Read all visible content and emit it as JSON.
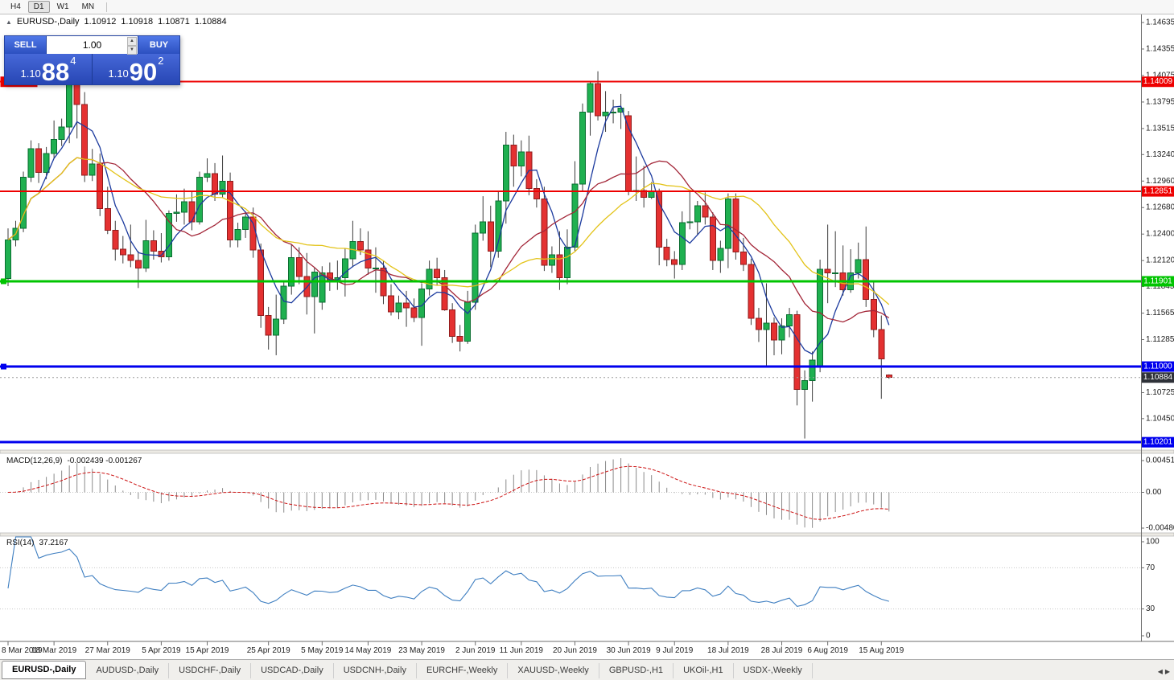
{
  "toolbar": {
    "periods": [
      {
        "label": "H4",
        "active": false
      },
      {
        "label": "D1",
        "active": true
      },
      {
        "label": "W1",
        "active": false
      },
      {
        "label": "MN",
        "active": false
      }
    ]
  },
  "icons": {
    "collapse": "▲",
    "spin_up": "▲",
    "spin_down": "▼",
    "tab_left": "◀",
    "tab_right": "▶"
  },
  "chart_header": {
    "symbol_period": "EURUSD-,Daily",
    "open": "1.10912",
    "high": "1.10918",
    "low": "1.10871",
    "close": "1.10884"
  },
  "one_click": {
    "sell_label": "SELL",
    "buy_label": "BUY",
    "volume": "1.00",
    "sell_price": {
      "prefix": "1.10",
      "big": "88",
      "sup": "4"
    },
    "buy_price": {
      "prefix": "1.10",
      "big": "90",
      "sup": "2"
    }
  },
  "colors": {
    "candle_up_fill": "#1fb050",
    "candle_up_stroke": "#0a6e30",
    "candle_down_fill": "#e43131",
    "candle_down_stroke": "#901c1c",
    "wick": "#3c3c3c",
    "ma_fast": "#1b3a9e",
    "ma_mid": "#a32638",
    "ma_slow": "#e3c318",
    "macd_histogram": "#8a8a8a",
    "macd_signal": "#cc1111",
    "rsi_line": "#3f7fc1",
    "level_red": "#ee0000",
    "level_green": "#00c400",
    "level_blue": "#0000ee",
    "current_price_line": "#a0a0a0",
    "current_badge": "#2e3138",
    "axis_line": "#6e6e6e",
    "grid_dotted": "#c8c8c8"
  },
  "hlines": [
    {
      "price": 1.14009,
      "color": "#ee0000",
      "width": 2,
      "handle": false
    },
    {
      "price": 1.12851,
      "color": "#ee0000",
      "width": 2,
      "handle": false
    },
    {
      "price": 1.11901,
      "color": "#00c400",
      "width": 3,
      "handle": true
    },
    {
      "price": 1.11,
      "color": "#0000ee",
      "width": 3,
      "handle": true
    },
    {
      "price": 1.10201,
      "color": "#0000ee",
      "width": 3,
      "handle": false
    }
  ],
  "current_price_line": {
    "price": 1.10884
  },
  "price_axis": {
    "labels": [
      1.14635,
      1.14355,
      1.14075,
      1.13795,
      1.13515,
      1.1324,
      1.1296,
      1.1268,
      1.124,
      1.1212,
      1.11845,
      1.11565,
      1.11285,
      1.10725,
      1.1045
    ],
    "badges": [
      {
        "text": "1.14009",
        "price": 1.14009,
        "color": "#ee0000"
      },
      {
        "text": "1.12851",
        "price": 1.12851,
        "color": "#ee0000"
      },
      {
        "text": "1.11901",
        "price": 1.11901,
        "color": "#00c400"
      },
      {
        "text": "1.11000",
        "price": 1.11,
        "color": "#0000ee"
      },
      {
        "text": "1.10884",
        "price": 1.10884,
        "color": "#2e3138"
      },
      {
        "text": "1.10201",
        "price": 1.10201,
        "color": "#0000ee"
      }
    ],
    "left_badge": {
      "text": "1.14009",
      "price": 1.14009,
      "color": "#ee0000"
    }
  },
  "macd_panel": {
    "label": "MACD(12,26,9)",
    "values": "-0.002439 -0.001267",
    "params": [
      12,
      26,
      9
    ],
    "axis_labels": {
      "top": "0.004517",
      "zero": "0.00",
      "bottom": "-0.004806"
    },
    "range": {
      "max": 0.004517,
      "min": -0.004806
    }
  },
  "rsi_panel": {
    "label": "RSI(14)",
    "value": "37.2167",
    "period": 14,
    "axis_labels": {
      "top": "100",
      "upper": "70",
      "lower": "30",
      "bottom": "0"
    },
    "levels": [
      70,
      30
    ]
  },
  "tab_bar": {
    "tabs": [
      {
        "label": "EURUSD-,Daily",
        "active": true
      },
      {
        "label": "AUDUSD-,Daily",
        "active": false
      },
      {
        "label": "USDCHF-,Daily",
        "active": false
      },
      {
        "label": "USDCAD-,Daily",
        "active": false
      },
      {
        "label": "USDCNH-,Daily",
        "active": false
      },
      {
        "label": "EURCHF-,Weekly",
        "active": false
      },
      {
        "label": "XAUUSD-,Weekly",
        "active": false
      },
      {
        "label": "GBPUSD-,H1",
        "active": false
      },
      {
        "label": "UKOil-,H1",
        "active": false
      },
      {
        "label": "USDX-,Weekly",
        "active": false
      }
    ]
  },
  "chart_data": {
    "type": "candlestick",
    "symbol": "EURUSD-",
    "timeframe": "Daily",
    "price_scale": {
      "top_price": 1.1472,
      "bottom_price": 1.10126
    },
    "moving_averages": [
      {
        "name": "fast",
        "period": 5,
        "color": "#1b3a9e"
      },
      {
        "name": "mid",
        "period": 13,
        "color": "#a32638"
      },
      {
        "name": "slow",
        "period": 24,
        "color": "#e3c318"
      }
    ],
    "x_labels": [
      [
        "8 Mar 2019",
        0
      ],
      [
        "18 Mar 2019",
        6
      ],
      [
        "27 Mar 2019",
        13
      ],
      [
        "5 Apr 2019",
        20
      ],
      [
        "15 Apr 2019",
        26
      ],
      [
        "25 Apr 2019",
        34
      ],
      [
        "5 May 2019",
        41
      ],
      [
        "14 May 2019",
        47
      ],
      [
        "23 May 2019",
        54
      ],
      [
        "2 Jun 2019",
        61
      ],
      [
        "11 Jun 2019",
        67
      ],
      [
        "20 Jun 2019",
        74
      ],
      [
        "30 Jun 2019",
        81
      ],
      [
        "9 Jul 2019",
        87
      ],
      [
        "18 Jul 2019",
        94
      ],
      [
        "28 Jul 2019",
        101
      ],
      [
        "6 Aug 2019",
        107
      ],
      [
        "15 Aug 2019",
        114
      ]
    ],
    "candle_format": [
      "date",
      "open",
      "high",
      "low",
      "close"
    ],
    "candles": [
      [
        "8 Mar",
        1.1193,
        1.1246,
        1.1185,
        1.1234
      ],
      [
        "11 Mar",
        1.1234,
        1.1254,
        1.1227,
        1.1246
      ],
      [
        "12 Mar",
        1.1246,
        1.1306,
        1.1242,
        1.13
      ],
      [
        "13 Mar",
        1.13,
        1.1339,
        1.1295,
        1.133
      ],
      [
        "14 Mar",
        1.133,
        1.1336,
        1.1294,
        1.1305
      ],
      [
        "15 Mar",
        1.1305,
        1.1332,
        1.1298,
        1.1325
      ],
      [
        "18 Mar",
        1.1325,
        1.136,
        1.132,
        1.134
      ],
      [
        "19 Mar",
        1.134,
        1.1362,
        1.1333,
        1.1353
      ],
      [
        "20 Mar",
        1.1353,
        1.1402,
        1.1336,
        1.1398
      ],
      [
        "21 Mar",
        1.1398,
        1.1401,
        1.1341,
        1.1377
      ],
      [
        "22 Mar",
        1.1377,
        1.139,
        1.1295,
        1.1302
      ],
      [
        "25 Mar",
        1.1302,
        1.133,
        1.1296,
        1.1314
      ],
      [
        "26 Mar",
        1.1314,
        1.1325,
        1.1259,
        1.1267
      ],
      [
        "27 Mar",
        1.1267,
        1.129,
        1.124,
        1.1244
      ],
      [
        "28 Mar",
        1.1244,
        1.1254,
        1.1212,
        1.1224
      ],
      [
        "29 Mar",
        1.1224,
        1.1238,
        1.1209,
        1.1218
      ],
      [
        "1 Apr",
        1.1218,
        1.125,
        1.1205,
        1.1212
      ],
      [
        "2 Apr",
        1.1212,
        1.1222,
        1.1183,
        1.1204
      ],
      [
        "3 Apr",
        1.1204,
        1.1255,
        1.12,
        1.1233
      ],
      [
        "4 Apr",
        1.1233,
        1.1244,
        1.1213,
        1.1222
      ],
      [
        "5 Apr",
        1.1222,
        1.1241,
        1.121,
        1.1216
      ],
      [
        "8 Apr",
        1.1216,
        1.1265,
        1.1212,
        1.1262
      ],
      [
        "9 Apr",
        1.1262,
        1.1282,
        1.1253,
        1.1263
      ],
      [
        "10 Apr",
        1.1263,
        1.1288,
        1.125,
        1.1274
      ],
      [
        "11 Apr",
        1.1274,
        1.1285,
        1.1244,
        1.1253
      ],
      [
        "12 Apr",
        1.1253,
        1.1306,
        1.125,
        1.13
      ],
      [
        "15 Apr",
        1.13,
        1.132,
        1.1295,
        1.1304
      ],
      [
        "16 Apr",
        1.1304,
        1.1315,
        1.1275,
        1.1282
      ],
      [
        "17 Apr",
        1.1282,
        1.1323,
        1.1278,
        1.1296
      ],
      [
        "18 Apr",
        1.1296,
        1.1305,
        1.1226,
        1.1234
      ],
      [
        "19 Apr",
        1.1234,
        1.1252,
        1.1226,
        1.1245
      ],
      [
        "22 Apr",
        1.1245,
        1.1264,
        1.1236,
        1.1258
      ],
      [
        "23 Apr",
        1.1258,
        1.1268,
        1.1215,
        1.1223
      ],
      [
        "24 Apr",
        1.1223,
        1.123,
        1.1141,
        1.1154
      ],
      [
        "25 Apr",
        1.1154,
        1.1163,
        1.1118,
        1.1133
      ],
      [
        "26 Apr",
        1.1133,
        1.1176,
        1.1112,
        1.115
      ],
      [
        "29 Apr",
        1.115,
        1.119,
        1.1145,
        1.1185
      ],
      [
        "30 Apr",
        1.1185,
        1.1229,
        1.1176,
        1.1215
      ],
      [
        "1 May",
        1.1215,
        1.1226,
        1.1187,
        1.1195
      ],
      [
        "2 May",
        1.1195,
        1.122,
        1.1155,
        1.1174
      ],
      [
        "3 May",
        1.1174,
        1.1205,
        1.1135,
        1.12
      ],
      [
        "6 May",
        1.1168,
        1.1206,
        1.116,
        1.1199
      ],
      [
        "7 May",
        1.1199,
        1.121,
        1.118,
        1.119
      ],
      [
        "8 May",
        1.119,
        1.1212,
        1.1181,
        1.1194
      ],
      [
        "9 May",
        1.1194,
        1.1225,
        1.1174,
        1.1214
      ],
      [
        "10 May",
        1.1214,
        1.1254,
        1.1205,
        1.1232
      ],
      [
        "13 May",
        1.1232,
        1.1246,
        1.1218,
        1.1223
      ],
      [
        "14 May",
        1.1223,
        1.1243,
        1.1197,
        1.1204
      ],
      [
        "15 May",
        1.1204,
        1.1226,
        1.1178,
        1.1204
      ],
      [
        "16 May",
        1.1204,
        1.1212,
        1.1166,
        1.1175
      ],
      [
        "17 May",
        1.1175,
        1.1187,
        1.1154,
        1.1158
      ],
      [
        "20 May",
        1.1158,
        1.1175,
        1.115,
        1.1167
      ],
      [
        "21 May",
        1.1167,
        1.118,
        1.1142,
        1.1162
      ],
      [
        "22 May",
        1.1162,
        1.1172,
        1.1147,
        1.1152
      ],
      [
        "23 May",
        1.1152,
        1.1188,
        1.1122,
        1.1182
      ],
      [
        "24 May",
        1.1182,
        1.1212,
        1.1175,
        1.1203
      ],
      [
        "27 May",
        1.1203,
        1.1215,
        1.1186,
        1.1194
      ],
      [
        "28 May",
        1.1194,
        1.1202,
        1.1159,
        1.116
      ],
      [
        "29 May",
        1.116,
        1.1167,
        1.1125,
        1.1132
      ],
      [
        "30 May",
        1.1132,
        1.1144,
        1.1116,
        1.1127
      ],
      [
        "31 May",
        1.1127,
        1.118,
        1.1124,
        1.1168
      ],
      [
        "3 Jun",
        1.1168,
        1.125,
        1.116,
        1.1241
      ],
      [
        "4 Jun",
        1.1241,
        1.128,
        1.1233,
        1.1253
      ],
      [
        "5 Jun",
        1.1253,
        1.127,
        1.1205,
        1.1222
      ],
      [
        "6 Jun",
        1.1222,
        1.1285,
        1.1215,
        1.1275
      ],
      [
        "7 Jun",
        1.1275,
        1.1348,
        1.1251,
        1.1334
      ],
      [
        "10 Jun",
        1.1334,
        1.1345,
        1.129,
        1.1312
      ],
      [
        "11 Jun",
        1.1312,
        1.1339,
        1.1301,
        1.1327
      ],
      [
        "12 Jun",
        1.1327,
        1.1344,
        1.1281,
        1.1288
      ],
      [
        "13 Jun",
        1.1288,
        1.1298,
        1.1268,
        1.1277
      ],
      [
        "14 Jun",
        1.1277,
        1.129,
        1.1201,
        1.1207
      ],
      [
        "17 Jun",
        1.1207,
        1.1227,
        1.1199,
        1.1218
      ],
      [
        "18 Jun",
        1.1218,
        1.1243,
        1.1181,
        1.1194
      ],
      [
        "19 Jun",
        1.1194,
        1.1245,
        1.1187,
        1.1226
      ],
      [
        "20 Jun",
        1.1226,
        1.1317,
        1.1222,
        1.1293
      ],
      [
        "21 Jun",
        1.1293,
        1.1378,
        1.1286,
        1.1369
      ],
      [
        "24 Jun",
        1.1369,
        1.1401,
        1.1344,
        1.1399
      ],
      [
        "25 Jun",
        1.1399,
        1.1412,
        1.136,
        1.1365
      ],
      [
        "26 Jun",
        1.1365,
        1.1391,
        1.1348,
        1.1369
      ],
      [
        "27 Jun",
        1.1369,
        1.1382,
        1.1357,
        1.1369
      ],
      [
        "28 Jun",
        1.1369,
        1.1388,
        1.1351,
        1.1373
      ],
      [
        "1 Jul",
        1.1365,
        1.137,
        1.1281,
        1.1285
      ],
      [
        "2 Jul",
        1.1285,
        1.1322,
        1.1275,
        1.1286
      ],
      [
        "3 Jul",
        1.1286,
        1.1312,
        1.1268,
        1.1279
      ],
      [
        "4 Jul",
        1.1279,
        1.1295,
        1.1277,
        1.1285
      ],
      [
        "5 Jul",
        1.1285,
        1.1288,
        1.1207,
        1.1226
      ],
      [
        "8 Jul",
        1.1226,
        1.1235,
        1.1206,
        1.1213
      ],
      [
        "9 Jul",
        1.1213,
        1.1222,
        1.1193,
        1.1208
      ],
      [
        "10 Jul",
        1.1208,
        1.1264,
        1.1202,
        1.1252
      ],
      [
        "11 Jul",
        1.1252,
        1.1286,
        1.1245,
        1.1253
      ],
      [
        "12 Jul",
        1.1253,
        1.1275,
        1.1239,
        1.127
      ],
      [
        "15 Jul",
        1.127,
        1.1284,
        1.125,
        1.1258
      ],
      [
        "16 Jul",
        1.1258,
        1.1263,
        1.1202,
        1.1212
      ],
      [
        "17 Jul",
        1.1212,
        1.1233,
        1.1199,
        1.1225
      ],
      [
        "18 Jul",
        1.1225,
        1.1283,
        1.1204,
        1.1277
      ],
      [
        "19 Jul",
        1.1277,
        1.1283,
        1.1213,
        1.1221
      ],
      [
        "22 Jul",
        1.1221,
        1.1236,
        1.1201,
        1.1208
      ],
      [
        "23 Jul",
        1.1208,
        1.1214,
        1.1144,
        1.1151
      ],
      [
        "24 Jul",
        1.1151,
        1.1162,
        1.1126,
        1.1139
      ],
      [
        "25 Jul",
        1.1139,
        1.1188,
        1.1101,
        1.1146
      ],
      [
        "26 Jul",
        1.1146,
        1.1152,
        1.1112,
        1.1128
      ],
      [
        "29 Jul",
        1.1128,
        1.1151,
        1.1113,
        1.1143
      ],
      [
        "30 Jul",
        1.1143,
        1.1162,
        1.1131,
        1.1155
      ],
      [
        "31 Jul",
        1.1155,
        1.1159,
        1.1059,
        1.1076
      ],
      [
        "1 Aug",
        1.1076,
        1.1096,
        1.1024,
        1.1085
      ],
      [
        "2 Aug",
        1.1085,
        1.1116,
        1.1063,
        1.1107
      ],
      [
        "5 Aug",
        1.11,
        1.1213,
        1.1094,
        1.1203
      ],
      [
        "6 Aug",
        1.1203,
        1.125,
        1.1167,
        1.1199
      ],
      [
        "7 Aug",
        1.1199,
        1.1243,
        1.1184,
        1.1199
      ],
      [
        "8 Aug",
        1.1199,
        1.1228,
        1.1175,
        1.1181
      ],
      [
        "9 Aug",
        1.1181,
        1.1224,
        1.1178,
        1.1199
      ],
      [
        "12 Aug",
        1.1199,
        1.1231,
        1.1193,
        1.1213
      ],
      [
        "13 Aug",
        1.1213,
        1.1248,
        1.1163,
        1.1171
      ],
      [
        "14 Aug",
        1.1171,
        1.1191,
        1.1131,
        1.1139
      ],
      [
        "15 Aug",
        1.1139,
        1.1154,
        1.1066,
        1.1108
      ],
      [
        "16 Aug",
        1.10912,
        1.10918,
        1.10871,
        1.10884
      ]
    ]
  }
}
